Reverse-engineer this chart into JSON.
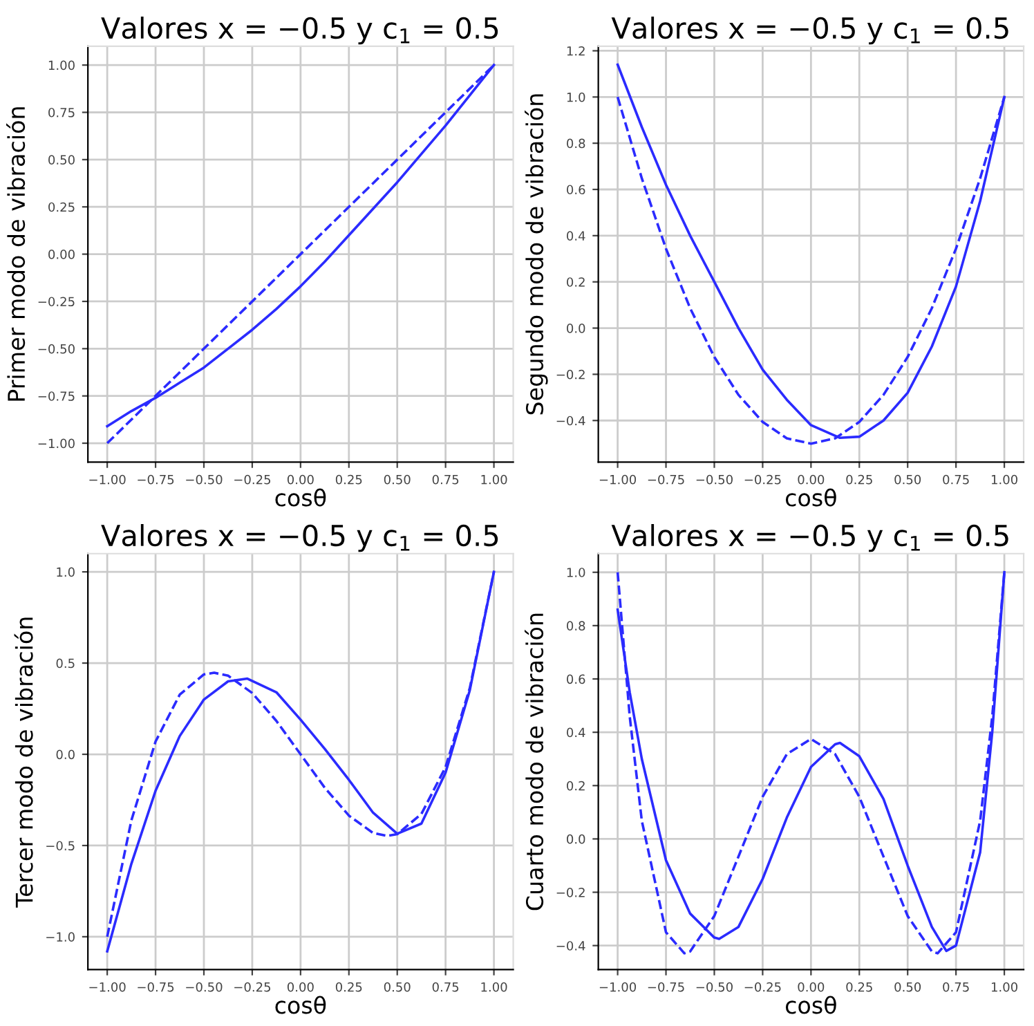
{
  "chart_data": [
    {
      "type": "line",
      "title": "Valores x = −0.5 y c$_{1}$ = 0.5",
      "xlabel": "cosθ",
      "ylabel": "Primer modo de vibración",
      "grid": true,
      "xlim": [
        -1.1,
        1.1
      ],
      "ylim": [
        -1.1,
        1.1
      ],
      "xticks": [
        {
          "value": -1,
          "label": "−1.00"
        },
        {
          "value": -0.75,
          "label": "−0.75"
        },
        {
          "value": -0.5,
          "label": "−0.50"
        },
        {
          "value": -0.25,
          "label": "−0.25"
        },
        {
          "value": 0,
          "label": "0.00"
        },
        {
          "value": 0.25,
          "label": "0.25"
        },
        {
          "value": 0.5,
          "label": "0.50"
        },
        {
          "value": 0.75,
          "label": "0.75"
        },
        {
          "value": 1,
          "label": "1.00"
        }
      ],
      "yticks": [
        {
          "value": -1,
          "label": "−1.00"
        },
        {
          "value": -0.75,
          "label": "−0.75"
        },
        {
          "value": -0.5,
          "label": "−0.50"
        },
        {
          "value": -0.25,
          "label": "−0.25"
        },
        {
          "value": 0,
          "label": "0.00"
        },
        {
          "value": 0.25,
          "label": "0.25"
        },
        {
          "value": 0.5,
          "label": "0.50"
        },
        {
          "value": 0.75,
          "label": "0.75"
        },
        {
          "value": 1,
          "label": "1.00"
        }
      ],
      "series": [
        {
          "color": "#2b2bff",
          "line_style": "solid",
          "x": [
            -1,
            -0.875,
            -0.75,
            -0.625,
            -0.5,
            -0.375,
            -0.25,
            -0.125,
            0,
            0.125,
            0.25,
            0.375,
            0.5,
            0.625,
            0.75,
            0.875,
            1
          ],
          "values": [
            -0.91,
            -0.83,
            -0.76,
            -0.68,
            -0.6,
            -0.5,
            -0.4,
            -0.29,
            -0.17,
            -0.04,
            0.1,
            0.24,
            0.38,
            0.53,
            0.68,
            0.84,
            1.0
          ]
        },
        {
          "color": "#2b2bff",
          "line_style": "dashed",
          "x": [
            -1,
            -0.5,
            0,
            0.5,
            1
          ],
          "values": [
            -1,
            -0.5,
            0,
            0.5,
            1
          ]
        }
      ]
    },
    {
      "type": "line",
      "title": "Valores x = −0.5 y c$_{1}$ = 0.5",
      "xlabel": "cosθ",
      "ylabel": "Segundo modo de vibración",
      "grid": true,
      "xlim": [
        -1.1,
        1.1
      ],
      "ylim": [
        -0.58,
        1.22
      ],
      "xticks": [
        {
          "value": -1,
          "label": "−1.00"
        },
        {
          "value": -0.75,
          "label": "−0.75"
        },
        {
          "value": -0.5,
          "label": "−0.50"
        },
        {
          "value": -0.25,
          "label": "−0.25"
        },
        {
          "value": 0,
          "label": "0.00"
        },
        {
          "value": 0.25,
          "label": "0.25"
        },
        {
          "value": 0.5,
          "label": "0.50"
        },
        {
          "value": 0.75,
          "label": "0.75"
        },
        {
          "value": 1,
          "label": "1.00"
        }
      ],
      "yticks": [
        {
          "value": -0.4,
          "label": "−0.4"
        },
        {
          "value": -0.2,
          "label": "−0.2"
        },
        {
          "value": 0,
          "label": "0.0"
        },
        {
          "value": 0.2,
          "label": "0.2"
        },
        {
          "value": 0.4,
          "label": "0.4"
        },
        {
          "value": 0.6,
          "label": "0.6"
        },
        {
          "value": 0.8,
          "label": "0.8"
        },
        {
          "value": 1,
          "label": "1.0"
        },
        {
          "value": 1.2,
          "label": "1.2"
        }
      ],
      "series": [
        {
          "color": "#2b2bff",
          "line_style": "solid",
          "x": [
            -1,
            -0.875,
            -0.75,
            -0.625,
            -0.5,
            -0.375,
            -0.25,
            -0.125,
            0,
            0.15,
            0.25,
            0.375,
            0.5,
            0.625,
            0.75,
            0.875,
            1
          ],
          "values": [
            1.14,
            0.87,
            0.62,
            0.4,
            0.2,
            0.0,
            -0.18,
            -0.31,
            -0.42,
            -0.475,
            -0.47,
            -0.4,
            -0.28,
            -0.08,
            0.18,
            0.55,
            1.0
          ]
        },
        {
          "color": "#2b2bff",
          "line_style": "dashed",
          "x": [
            -1,
            -0.875,
            -0.75,
            -0.625,
            -0.5,
            -0.375,
            -0.25,
            -0.125,
            0,
            0.125,
            0.25,
            0.375,
            0.5,
            0.625,
            0.75,
            0.875,
            1
          ],
          "values": [
            1,
            0.648,
            0.344,
            0.086,
            -0.125,
            -0.289,
            -0.406,
            -0.477,
            -0.5,
            -0.477,
            -0.406,
            -0.289,
            -0.125,
            0.086,
            0.344,
            0.648,
            1
          ]
        }
      ]
    },
    {
      "type": "line",
      "title": "Valores x = −0.5 y c$_{1}$ = 0.5",
      "xlabel": "cosθ",
      "ylabel": "Tercer modo de vibración",
      "grid": true,
      "xlim": [
        -1.1,
        1.1
      ],
      "ylim": [
        -1.18,
        1.1
      ],
      "xticks": [
        {
          "value": -1,
          "label": "−1.00"
        },
        {
          "value": -0.75,
          "label": "−0.75"
        },
        {
          "value": -0.5,
          "label": "−0.50"
        },
        {
          "value": -0.25,
          "label": "−0.25"
        },
        {
          "value": 0,
          "label": "0.00"
        },
        {
          "value": 0.25,
          "label": "0.25"
        },
        {
          "value": 0.5,
          "label": "0.50"
        },
        {
          "value": 0.75,
          "label": "0.75"
        },
        {
          "value": 1,
          "label": "1.00"
        }
      ],
      "yticks": [
        {
          "value": -1,
          "label": "−1.0"
        },
        {
          "value": -0.5,
          "label": "−0.5"
        },
        {
          "value": 0,
          "label": "0.0"
        },
        {
          "value": 0.5,
          "label": "0.5"
        },
        {
          "value": 1,
          "label": "1.0"
        }
      ],
      "series": [
        {
          "color": "#2b2bff",
          "line_style": "solid",
          "x": [
            -1,
            -0.875,
            -0.75,
            -0.625,
            -0.5,
            -0.375,
            -0.275,
            -0.125,
            0,
            0.125,
            0.25,
            0.375,
            0.5,
            0.625,
            0.75,
            0.875,
            1
          ],
          "values": [
            -1.08,
            -0.6,
            -0.2,
            0.1,
            0.3,
            0.4,
            0.415,
            0.34,
            0.19,
            0.03,
            -0.14,
            -0.32,
            -0.435,
            -0.38,
            -0.1,
            0.35,
            1.0
          ]
        },
        {
          "color": "#2b2bff",
          "line_style": "dashed",
          "x": [
            -1,
            -0.875,
            -0.75,
            -0.625,
            -0.5,
            -0.447,
            -0.375,
            -0.25,
            -0.125,
            0,
            0.125,
            0.25,
            0.375,
            0.447,
            0.5,
            0.625,
            0.75,
            0.875,
            1
          ],
          "values": [
            -1,
            -0.362,
            0.07,
            0.327,
            0.438,
            0.447,
            0.431,
            0.336,
            0.183,
            0,
            -0.183,
            -0.336,
            -0.431,
            -0.447,
            -0.438,
            -0.327,
            -0.07,
            0.362,
            1
          ]
        }
      ]
    },
    {
      "type": "line",
      "title": "Valores x = −0.5 y c$_{1}$ = 0.5",
      "xlabel": "cosθ",
      "ylabel": "Cuarto modo de vibración",
      "grid": true,
      "xlim": [
        -1.1,
        1.1
      ],
      "ylim": [
        -0.49,
        1.07
      ],
      "xticks": [
        {
          "value": -1,
          "label": "−1.00"
        },
        {
          "value": -0.75,
          "label": "−0.75"
        },
        {
          "value": -0.5,
          "label": "−0.50"
        },
        {
          "value": -0.25,
          "label": "−0.25"
        },
        {
          "value": 0,
          "label": "0.00"
        },
        {
          "value": 0.25,
          "label": "0.25"
        },
        {
          "value": 0.5,
          "label": "0.50"
        },
        {
          "value": 0.75,
          "label": "0.75"
        },
        {
          "value": 1,
          "label": "1.00"
        }
      ],
      "yticks": [
        {
          "value": -0.4,
          "label": "−0.4"
        },
        {
          "value": -0.2,
          "label": "−0.2"
        },
        {
          "value": 0,
          "label": "0.0"
        },
        {
          "value": 0.2,
          "label": "0.2"
        },
        {
          "value": 0.4,
          "label": "0.4"
        },
        {
          "value": 0.6,
          "label": "0.6"
        },
        {
          "value": 0.8,
          "label": "0.8"
        },
        {
          "value": 1,
          "label": "1.0"
        }
      ],
      "series": [
        {
          "color": "#2b2bff",
          "line_style": "solid",
          "x": [
            -1,
            -0.9375,
            -0.875,
            -0.75,
            -0.625,
            -0.5,
            -0.475,
            -0.375,
            -0.25,
            -0.125,
            0,
            0.125,
            0.15,
            0.25,
            0.375,
            0.5,
            0.625,
            0.7,
            0.75,
            0.875,
            0.9375,
            1
          ],
          "values": [
            0.86,
            0.55,
            0.3,
            -0.08,
            -0.28,
            -0.37,
            -0.375,
            -0.33,
            -0.15,
            0.08,
            0.27,
            0.355,
            0.36,
            0.31,
            0.15,
            -0.1,
            -0.33,
            -0.42,
            -0.4,
            -0.05,
            0.4,
            1.0
          ]
        },
        {
          "color": "#2b2bff",
          "line_style": "dashed",
          "x": [
            -1,
            -0.9375,
            -0.875,
            -0.75,
            -0.655,
            -0.625,
            -0.5,
            -0.375,
            -0.25,
            -0.125,
            0,
            0.125,
            0.25,
            0.375,
            0.5,
            0.625,
            0.655,
            0.75,
            0.875,
            0.9375,
            1
          ],
          "values": [
            1,
            0.459,
            0.068,
            -0.35,
            -0.429,
            -0.422,
            -0.289,
            -0.066,
            0.158,
            0.318,
            0.375,
            0.318,
            0.158,
            -0.066,
            -0.289,
            -0.422,
            -0.429,
            -0.35,
            0.068,
            0.459,
            1
          ]
        }
      ]
    }
  ]
}
